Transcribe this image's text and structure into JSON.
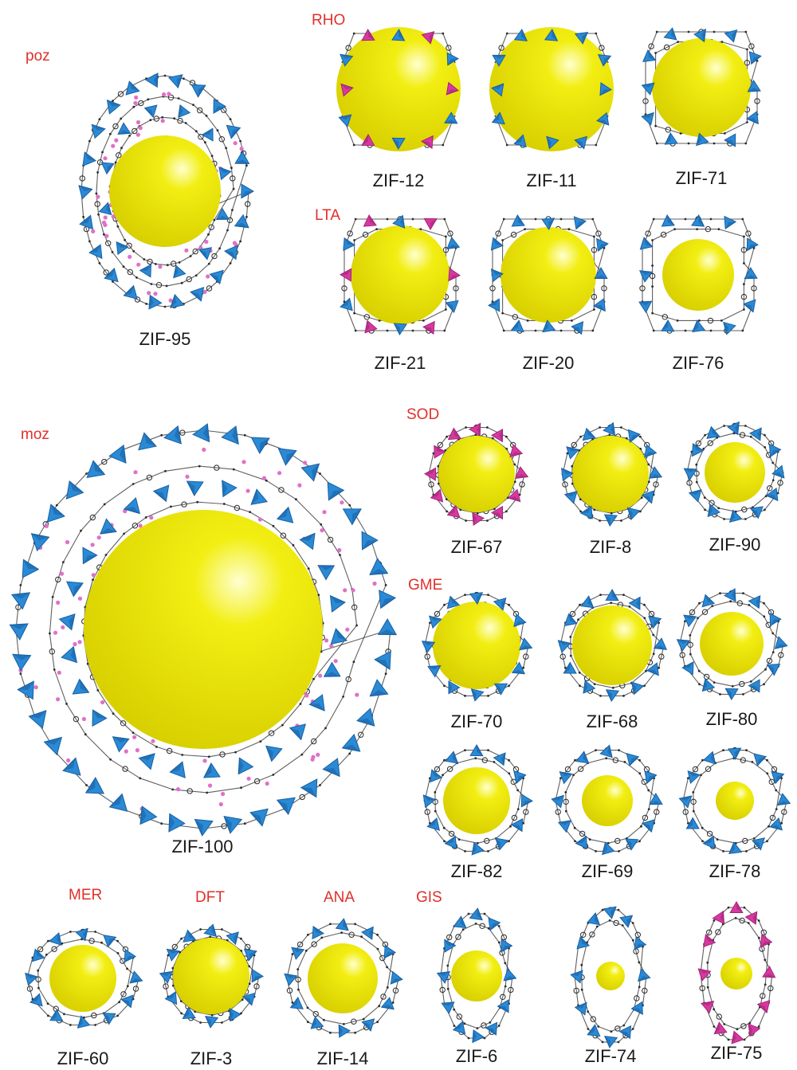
{
  "colors": {
    "sphere": "#f2ee12",
    "sphere_highlight": "#ffffd0",
    "tetra_blue": "#2a8ad6",
    "tetra_blue_dark": "#1a5fa0",
    "tetra_pink": "#d8399f",
    "linker": "#2b2b2b",
    "methyl": "#e070c8",
    "topology_text": "#e0302a"
  },
  "cages": [
    {
      "name": "ZIF-95",
      "topology": "poz",
      "tetra": "blue",
      "pink_dots": true
    },
    {
      "name": "ZIF-12",
      "topology": "RHO",
      "tetra": "mixed"
    },
    {
      "name": "ZIF-11",
      "topology": "",
      "tetra": "blue"
    },
    {
      "name": "ZIF-71",
      "topology": "",
      "tetra": "blue"
    },
    {
      "name": "ZIF-21",
      "topology": "LTA",
      "tetra": "mixed"
    },
    {
      "name": "ZIF-20",
      "topology": "",
      "tetra": "blue"
    },
    {
      "name": "ZIF-76",
      "topology": "",
      "tetra": "blue"
    },
    {
      "name": "ZIF-100",
      "topology": "moz",
      "tetra": "blue",
      "pink_dots": true
    },
    {
      "name": "ZIF-67",
      "topology": "SOD",
      "tetra": "pink"
    },
    {
      "name": "ZIF-8",
      "topology": "",
      "tetra": "blue"
    },
    {
      "name": "ZIF-90",
      "topology": "",
      "tetra": "blue"
    },
    {
      "name": "ZIF-70",
      "topology": "GME",
      "tetra": "blue"
    },
    {
      "name": "ZIF-68",
      "topology": "",
      "tetra": "blue"
    },
    {
      "name": "ZIF-80",
      "topology": "",
      "tetra": "blue"
    },
    {
      "name": "ZIF-82",
      "topology": "",
      "tetra": "blue"
    },
    {
      "name": "ZIF-69",
      "topology": "",
      "tetra": "blue"
    },
    {
      "name": "ZIF-78",
      "topology": "",
      "tetra": "blue"
    },
    {
      "name": "ZIF-60",
      "topology": "MER",
      "tetra": "blue"
    },
    {
      "name": "ZIF-3",
      "topology": "DFT",
      "tetra": "blue"
    },
    {
      "name": "ZIF-14",
      "topology": "ANA",
      "tetra": "blue"
    },
    {
      "name": "ZIF-6",
      "topology": "GIS",
      "tetra": "blue"
    },
    {
      "name": "ZIF-74",
      "topology": "",
      "tetra": "blue"
    },
    {
      "name": "ZIF-75",
      "topology": "",
      "tetra": "pink"
    }
  ]
}
